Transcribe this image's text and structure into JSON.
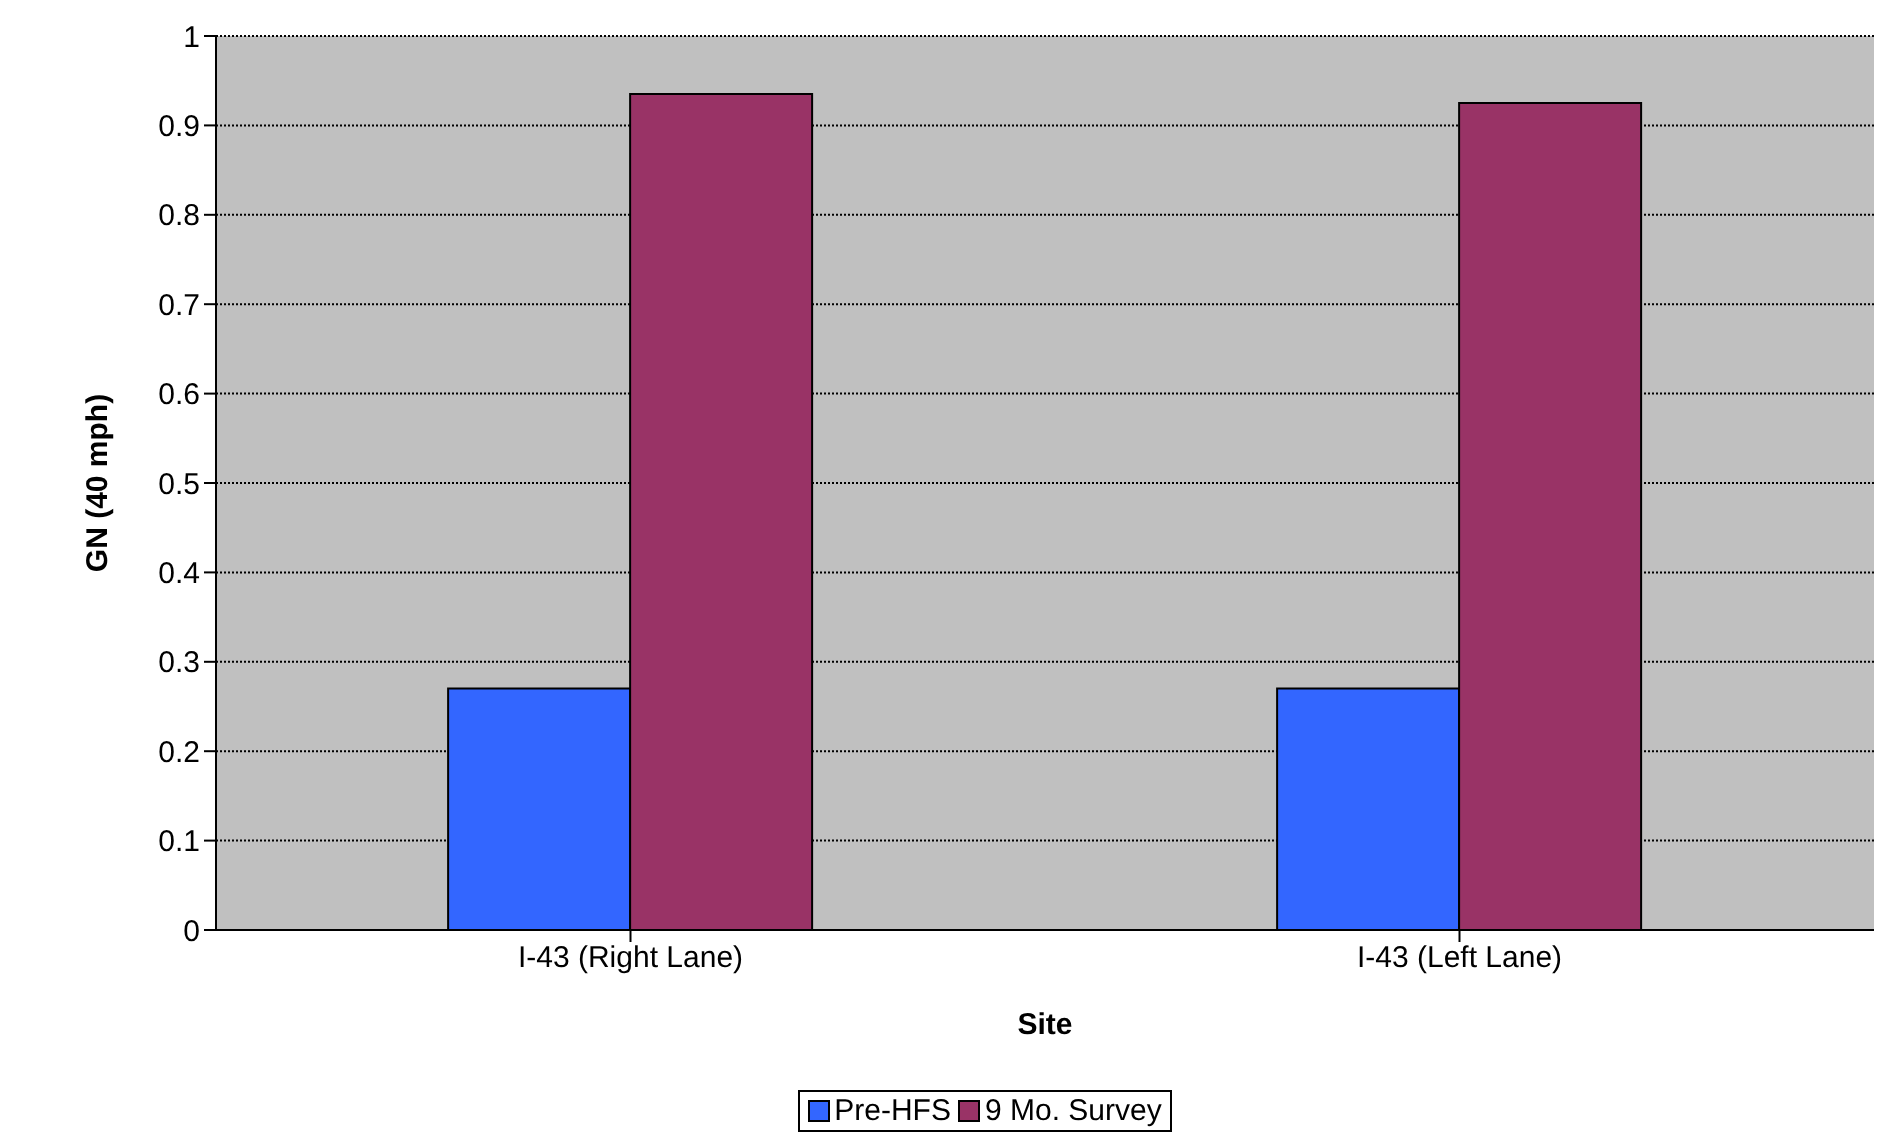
{
  "chart_data": {
    "type": "bar",
    "xlabel": "Site",
    "ylabel": "GN (40 mph)",
    "categories": [
      "I-43 (Right Lane)",
      "I-43 (Left Lane)"
    ],
    "series": [
      {
        "name": "Pre-HFS",
        "color": "#3366ff",
        "values": [
          0.27,
          0.27
        ]
      },
      {
        "name": "9 Mo. Survey",
        "color": "#993366",
        "values": [
          0.935,
          0.925
        ]
      }
    ],
    "ylim": [
      0,
      1
    ],
    "yticks": [
      0,
      0.1,
      0.2,
      0.3,
      0.4,
      0.5,
      0.6,
      0.7,
      0.8,
      0.9,
      1
    ],
    "grid": "y",
    "legend": "bottom"
  }
}
